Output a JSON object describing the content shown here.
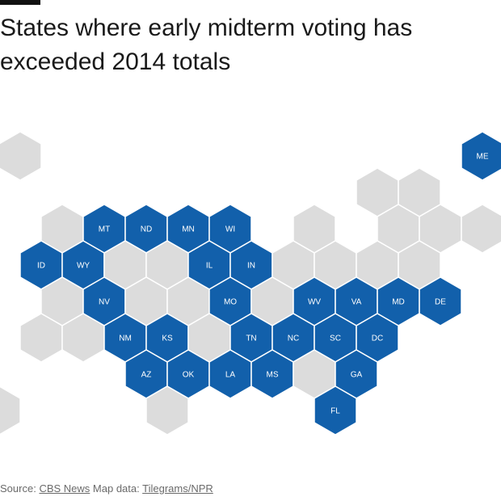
{
  "title": "States where early midterm voting has exceeded 2014 totals",
  "colors": {
    "highlight": "#1260ab",
    "other": "#dcdcdc",
    "stroke": "#ffffff"
  },
  "footer": {
    "source_label": "Source:",
    "source_link": "CBS News",
    "mapdata_label": "Map data:",
    "mapdata_link": "Tilegrams/NPR"
  },
  "hexes": [
    {
      "row": 0,
      "col": 0,
      "label": "",
      "highlighted": false
    },
    {
      "row": 0,
      "col": 11,
      "label": "ME",
      "highlighted": true
    },
    {
      "row": 1,
      "col": 9,
      "label": "",
      "highlighted": false
    },
    {
      "row": 1,
      "col": 10,
      "label": "",
      "highlighted": false
    },
    {
      "row": 2,
      "col": 1,
      "label": "",
      "highlighted": false
    },
    {
      "row": 2,
      "col": 2,
      "label": "MT",
      "highlighted": true
    },
    {
      "row": 2,
      "col": 3,
      "label": "ND",
      "highlighted": true
    },
    {
      "row": 2,
      "col": 4,
      "label": "MN",
      "highlighted": true
    },
    {
      "row": 2,
      "col": 5,
      "label": "WI",
      "highlighted": true
    },
    {
      "row": 2,
      "col": 7,
      "label": "",
      "highlighted": false
    },
    {
      "row": 2,
      "col": 9,
      "label": "",
      "highlighted": false
    },
    {
      "row": 2,
      "col": 10,
      "label": "",
      "highlighted": false
    },
    {
      "row": 2,
      "col": 11,
      "label": "",
      "highlighted": false
    },
    {
      "row": 3,
      "col": 1,
      "label": "ID",
      "highlighted": true
    },
    {
      "row": 3,
      "col": 2,
      "label": "WY",
      "highlighted": true
    },
    {
      "row": 3,
      "col": 3,
      "label": "",
      "highlighted": false
    },
    {
      "row": 3,
      "col": 4,
      "label": "",
      "highlighted": false
    },
    {
      "row": 3,
      "col": 5,
      "label": "IL",
      "highlighted": true
    },
    {
      "row": 3,
      "col": 6,
      "label": "IN",
      "highlighted": true
    },
    {
      "row": 3,
      "col": 7,
      "label": "",
      "highlighted": false
    },
    {
      "row": 3,
      "col": 8,
      "label": "",
      "highlighted": false
    },
    {
      "row": 3,
      "col": 9,
      "label": "",
      "highlighted": false
    },
    {
      "row": 3,
      "col": 10,
      "label": "",
      "highlighted": false
    },
    {
      "row": 4,
      "col": 1,
      "label": "",
      "highlighted": false
    },
    {
      "row": 4,
      "col": 2,
      "label": "NV",
      "highlighted": true
    },
    {
      "row": 4,
      "col": 3,
      "label": "",
      "highlighted": false
    },
    {
      "row": 4,
      "col": 4,
      "label": "",
      "highlighted": false
    },
    {
      "row": 4,
      "col": 5,
      "label": "MO",
      "highlighted": true
    },
    {
      "row": 4,
      "col": 6,
      "label": "",
      "highlighted": false
    },
    {
      "row": 4,
      "col": 7,
      "label": "WV",
      "highlighted": true
    },
    {
      "row": 4,
      "col": 8,
      "label": "VA",
      "highlighted": true
    },
    {
      "row": 4,
      "col": 9,
      "label": "MD",
      "highlighted": true
    },
    {
      "row": 4,
      "col": 10,
      "label": "DE",
      "highlighted": true
    },
    {
      "row": 5,
      "col": 1,
      "label": "",
      "highlighted": false
    },
    {
      "row": 5,
      "col": 2,
      "label": "",
      "highlighted": false
    },
    {
      "row": 5,
      "col": 3,
      "label": "NM",
      "highlighted": true
    },
    {
      "row": 5,
      "col": 4,
      "label": "KS",
      "highlighted": true
    },
    {
      "row": 5,
      "col": 5,
      "label": "",
      "highlighted": false
    },
    {
      "row": 5,
      "col": 6,
      "label": "TN",
      "highlighted": true
    },
    {
      "row": 5,
      "col": 7,
      "label": "NC",
      "highlighted": true
    },
    {
      "row": 5,
      "col": 8,
      "label": "SC",
      "highlighted": true
    },
    {
      "row": 5,
      "col": 9,
      "label": "DC",
      "highlighted": true
    },
    {
      "row": 6,
      "col": 3,
      "label": "AZ",
      "highlighted": true
    },
    {
      "row": 6,
      "col": 4,
      "label": "OK",
      "highlighted": true
    },
    {
      "row": 6,
      "col": 5,
      "label": "LA",
      "highlighted": true
    },
    {
      "row": 6,
      "col": 6,
      "label": "MS",
      "highlighted": true
    },
    {
      "row": 6,
      "col": 7,
      "label": "",
      "highlighted": false
    },
    {
      "row": 6,
      "col": 8,
      "label": "GA",
      "highlighted": true
    },
    {
      "row": 7,
      "col": 0,
      "label": "",
      "highlighted": false
    },
    {
      "row": 7,
      "col": 4,
      "label": "",
      "highlighted": false
    },
    {
      "row": 7,
      "col": 8,
      "label": "FL",
      "highlighted": true
    }
  ]
}
